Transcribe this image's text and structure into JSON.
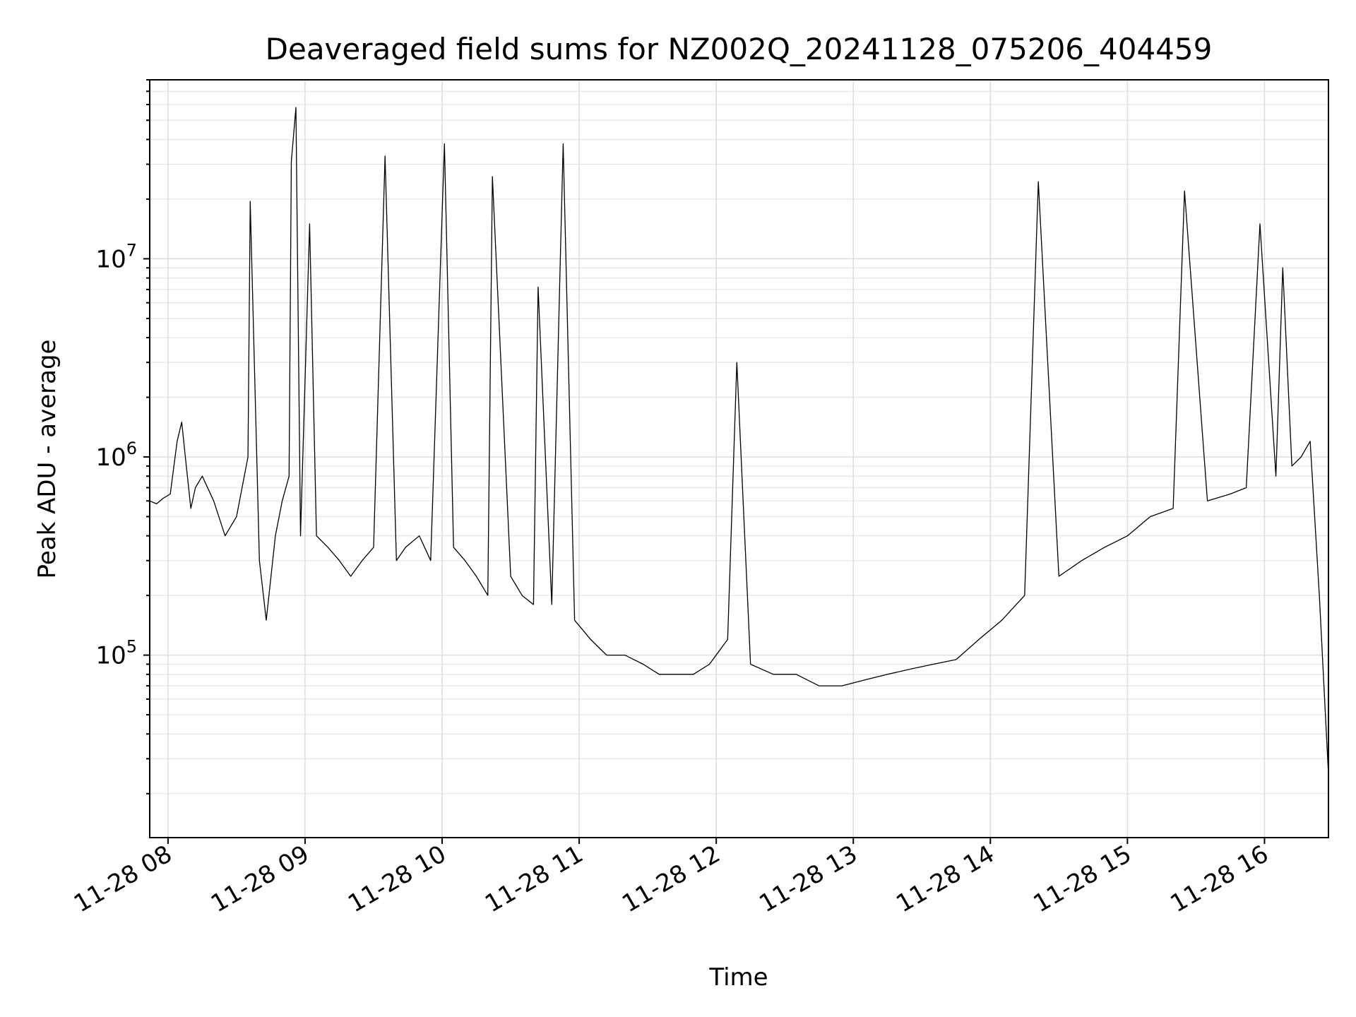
{
  "chart_data": {
    "type": "line",
    "title": "Deaveraged field sums for NZ002Q_20241128_075206_404459",
    "xlabel": "Time",
    "ylabel": "Peak ADU - average",
    "yscale": "log",
    "ylim": [
      12000,
      80000000
    ],
    "xlim": [
      "2024-11-28T07:52:00",
      "2024-11-28T16:28:00"
    ],
    "grid": true,
    "legend": "none",
    "color": "#000000",
    "x_ticks": [
      {
        "value": "2024-11-28T08:00:00",
        "label": "11-28 08"
      },
      {
        "value": "2024-11-28T09:00:00",
        "label": "11-28 09"
      },
      {
        "value": "2024-11-28T10:00:00",
        "label": "11-28 10"
      },
      {
        "value": "2024-11-28T11:00:00",
        "label": "11-28 11"
      },
      {
        "value": "2024-11-28T12:00:00",
        "label": "11-28 12"
      },
      {
        "value": "2024-11-28T13:00:00",
        "label": "11-28 13"
      },
      {
        "value": "2024-11-28T14:00:00",
        "label": "11-28 14"
      },
      {
        "value": "2024-11-28T15:00:00",
        "label": "11-28 15"
      },
      {
        "value": "2024-11-28T16:00:00",
        "label": "11-28 16"
      }
    ],
    "y_ticks": [
      {
        "value": 100000,
        "base": "10",
        "exp": "5"
      },
      {
        "value": 1000000,
        "base": "10",
        "exp": "6"
      },
      {
        "value": 10000000,
        "base": "10",
        "exp": "7"
      }
    ],
    "series": [
      {
        "x": [
          "2024-11-28T07:52:00",
          "2024-11-28T07:55:00",
          "2024-11-28T07:58:00",
          "2024-11-28T08:01:00",
          "2024-11-28T08:04:00",
          "2024-11-28T08:06:00",
          "2024-11-28T08:08:00",
          "2024-11-28T08:10:00",
          "2024-11-28T08:12:00",
          "2024-11-28T08:15:00",
          "2024-11-28T08:20:00",
          "2024-11-28T08:25:00",
          "2024-11-28T08:30:00",
          "2024-11-28T08:35:00",
          "2024-11-28T08:36:00",
          "2024-11-28T08:40:00",
          "2024-11-28T08:43:00",
          "2024-11-28T08:47:00",
          "2024-11-28T08:50:00",
          "2024-11-28T08:53:00",
          "2024-11-28T08:54:00",
          "2024-11-28T08:56:00",
          "2024-11-28T08:58:00",
          "2024-11-28T09:02:00",
          "2024-11-28T09:05:00",
          "2024-11-28T09:10:00",
          "2024-11-28T09:15:00",
          "2024-11-28T09:20:00",
          "2024-11-28T09:25:00",
          "2024-11-28T09:30:00",
          "2024-11-28T09:35:00",
          "2024-11-28T09:40:00",
          "2024-11-28T09:44:00",
          "2024-11-28T09:50:00",
          "2024-11-28T09:55:00",
          "2024-11-28T10:01:00",
          "2024-11-28T10:05:00",
          "2024-11-28T10:10:00",
          "2024-11-28T10:15:00",
          "2024-11-28T10:20:00",
          "2024-11-28T10:22:00",
          "2024-11-28T10:30:00",
          "2024-11-28T10:35:00",
          "2024-11-28T10:40:00",
          "2024-11-28T10:42:00",
          "2024-11-28T10:48:00",
          "2024-11-28T10:53:00",
          "2024-11-28T10:58:00",
          "2024-11-28T11:05:00",
          "2024-11-28T11:12:00",
          "2024-11-28T11:20:00",
          "2024-11-28T11:28:00",
          "2024-11-28T11:35:00",
          "2024-11-28T11:42:00",
          "2024-11-28T11:50:00",
          "2024-11-28T11:57:00",
          "2024-11-28T12:05:00",
          "2024-11-28T12:09:00",
          "2024-11-28T12:15:00",
          "2024-11-28T12:25:00",
          "2024-11-28T12:35:00",
          "2024-11-28T12:45:00",
          "2024-11-28T12:55:00",
          "2024-11-28T13:05:00",
          "2024-11-28T13:15:00",
          "2024-11-28T13:25:00",
          "2024-11-28T13:35:00",
          "2024-11-28T13:45:00",
          "2024-11-28T13:55:00",
          "2024-11-28T14:05:00",
          "2024-11-28T14:15:00",
          "2024-11-28T14:21:00",
          "2024-11-28T14:30:00",
          "2024-11-28T14:40:00",
          "2024-11-28T14:50:00",
          "2024-11-28T15:00:00",
          "2024-11-28T15:10:00",
          "2024-11-28T15:20:00",
          "2024-11-28T15:25:00",
          "2024-11-28T15:35:00",
          "2024-11-28T15:45:00",
          "2024-11-28T15:52:00",
          "2024-11-28T15:58:00",
          "2024-11-28T16:05:00",
          "2024-11-28T16:08:00",
          "2024-11-28T16:12:00",
          "2024-11-28T16:16:00",
          "2024-11-28T16:20:00",
          "2024-11-28T16:24:00",
          "2024-11-28T16:28:00"
        ],
        "y": [
          600000,
          580000,
          620000,
          650000,
          1200000,
          1500000,
          900000,
          550000,
          700000,
          800000,
          600000,
          400000,
          500000,
          1000000,
          19500000,
          300000,
          150000,
          400000,
          600000,
          800000,
          31000000,
          58000000,
          400000,
          15000000,
          400000,
          350000,
          300000,
          250000,
          300000,
          350000,
          33000000,
          300000,
          350000,
          400000,
          300000,
          38000000,
          350000,
          300000,
          250000,
          200000,
          26000000,
          250000,
          200000,
          180000,
          7200000,
          180000,
          38000000,
          150000,
          120000,
          100000,
          100000,
          90000,
          80000,
          80000,
          80000,
          90000,
          120000,
          3000000,
          90000,
          80000,
          80000,
          70000,
          70000,
          75000,
          80000,
          85000,
          90000,
          95000,
          120000,
          150000,
          200000,
          24500000,
          250000,
          300000,
          350000,
          400000,
          500000,
          550000,
          22000000,
          600000,
          650000,
          700000,
          15000000,
          800000,
          9000000,
          900000,
          1000000,
          1200000,
          200000,
          25000
        ]
      }
    ]
  }
}
